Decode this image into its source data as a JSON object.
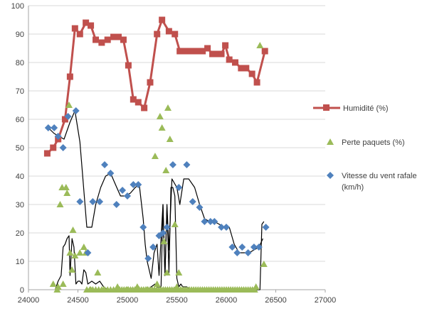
{
  "chart_data": {
    "type": "scatter",
    "title": "",
    "xlabel": "",
    "ylabel": "",
    "xlim": [
      24000,
      27000
    ],
    "ylim": [
      0,
      100
    ],
    "x_ticks": [
      24000,
      24500,
      25000,
      25500,
      26000,
      26500,
      27000
    ],
    "y_ticks": [
      0,
      10,
      20,
      30,
      40,
      50,
      60,
      70,
      80,
      90,
      100
    ],
    "grid": "horizontal",
    "legend_position": "right",
    "colors": {
      "humidity": "#C0504D",
      "packet_loss": "#9BBB59",
      "gust": "#4F81BD",
      "trend": "#000000",
      "grid": "#D9D9D9",
      "axis": "#A6A6A6"
    },
    "series": [
      {
        "name": "Humidité (%)",
        "style": "line-square",
        "points": [
          [
            24190,
            48
          ],
          [
            24250,
            50
          ],
          [
            24300,
            53
          ],
          [
            24370,
            60
          ],
          [
            24420,
            75
          ],
          [
            24470,
            92
          ],
          [
            24520,
            90
          ],
          [
            24580,
            94
          ],
          [
            24630,
            93
          ],
          [
            24680,
            88
          ],
          [
            24740,
            87
          ],
          [
            24800,
            88
          ],
          [
            24860,
            89
          ],
          [
            24910,
            89
          ],
          [
            24960,
            88
          ],
          [
            25010,
            79
          ],
          [
            25060,
            67
          ],
          [
            25110,
            66
          ],
          [
            25170,
            64
          ],
          [
            25230,
            73
          ],
          [
            25300,
            90
          ],
          [
            25350,
            95
          ],
          [
            25420,
            91
          ],
          [
            25480,
            90
          ],
          [
            25530,
            84
          ],
          [
            25590,
            84
          ],
          [
            25640,
            84
          ],
          [
            25700,
            84
          ],
          [
            25760,
            84
          ],
          [
            25810,
            85
          ],
          [
            25860,
            83
          ],
          [
            25900,
            83
          ],
          [
            25950,
            83
          ],
          [
            25990,
            86
          ],
          [
            26030,
            81
          ],
          [
            26090,
            80
          ],
          [
            26150,
            78
          ],
          [
            26200,
            78
          ],
          [
            26260,
            76
          ],
          [
            26310,
            73
          ],
          [
            26390,
            84
          ]
        ]
      },
      {
        "name": "Perte paquets (%)",
        "style": "triangle",
        "points": [
          [
            24250,
            2
          ],
          [
            24290,
            0
          ],
          [
            24300,
            1
          ],
          [
            24320,
            30
          ],
          [
            24340,
            36
          ],
          [
            24350,
            2
          ],
          [
            24380,
            36
          ],
          [
            24390,
            34
          ],
          [
            24410,
            65
          ],
          [
            24420,
            13
          ],
          [
            24440,
            7
          ],
          [
            24450,
            21
          ],
          [
            24470,
            12
          ],
          [
            24520,
            13
          ],
          [
            24560,
            15
          ],
          [
            24580,
            13
          ],
          [
            24590,
            0
          ],
          [
            24630,
            0
          ],
          [
            24700,
            6
          ],
          [
            24760,
            0
          ],
          [
            24900,
            1
          ],
          [
            25000,
            0
          ],
          [
            25100,
            1
          ],
          [
            25200,
            0
          ],
          [
            25280,
            47
          ],
          [
            25300,
            2
          ],
          [
            25330,
            61
          ],
          [
            25350,
            57
          ],
          [
            25370,
            17
          ],
          [
            25390,
            42
          ],
          [
            25400,
            6
          ],
          [
            25410,
            64
          ],
          [
            25430,
            53
          ],
          [
            25480,
            23
          ],
          [
            25500,
            1
          ],
          [
            25520,
            6
          ],
          [
            25540,
            0
          ],
          [
            26300,
            1
          ],
          [
            26340,
            86
          ],
          [
            26380,
            9
          ]
        ]
      },
      {
        "name": "Vitesse du vent rafale (km/h)",
        "style": "diamond",
        "points": [
          [
            24200,
            57
          ],
          [
            24260,
            57
          ],
          [
            24300,
            54
          ],
          [
            24350,
            50
          ],
          [
            24400,
            61
          ],
          [
            24480,
            63
          ],
          [
            24520,
            31
          ],
          [
            24600,
            13
          ],
          [
            24650,
            31
          ],
          [
            24720,
            31
          ],
          [
            24770,
            44
          ],
          [
            24830,
            41
          ],
          [
            24890,
            30
          ],
          [
            24950,
            35
          ],
          [
            25000,
            33
          ],
          [
            25060,
            37
          ],
          [
            25110,
            37
          ],
          [
            25160,
            22
          ],
          [
            25210,
            11
          ],
          [
            25260,
            15
          ],
          [
            25320,
            19
          ],
          [
            25360,
            20
          ],
          [
            25400,
            22
          ],
          [
            25460,
            44
          ],
          [
            25520,
            36
          ],
          [
            25600,
            44
          ],
          [
            25660,
            31
          ],
          [
            25730,
            29
          ],
          [
            25780,
            24
          ],
          [
            25840,
            24
          ],
          [
            25880,
            24
          ],
          [
            25950,
            22
          ],
          [
            26000,
            22
          ],
          [
            26060,
            15
          ],
          [
            26110,
            13
          ],
          [
            26160,
            15
          ],
          [
            26220,
            13
          ],
          [
            26280,
            15
          ],
          [
            26330,
            15
          ],
          [
            26400,
            22
          ]
        ]
      },
      {
        "name": "trend",
        "style": "line-black",
        "in_legend": false,
        "points": [
          [
            24200,
            57
          ],
          [
            24260,
            55
          ],
          [
            24310,
            54
          ],
          [
            24360,
            53
          ],
          [
            24420,
            59
          ],
          [
            24470,
            63
          ],
          [
            24520,
            52
          ],
          [
            24560,
            35
          ],
          [
            24590,
            22
          ],
          [
            24640,
            22
          ],
          [
            24680,
            30
          ],
          [
            24730,
            36
          ],
          [
            24780,
            40
          ],
          [
            24830,
            41
          ],
          [
            24880,
            37
          ],
          [
            24930,
            33
          ],
          [
            24980,
            33
          ],
          [
            25030,
            34
          ],
          [
            25080,
            36
          ],
          [
            25120,
            37
          ],
          [
            25160,
            25
          ],
          [
            25180,
            16
          ],
          [
            25200,
            10
          ],
          [
            25240,
            4
          ],
          [
            25270,
            13
          ],
          [
            25300,
            16
          ],
          [
            25320,
            5
          ],
          [
            25340,
            18
          ],
          [
            25360,
            30
          ],
          [
            25380,
            5
          ],
          [
            25400,
            30
          ],
          [
            25420,
            14
          ],
          [
            25450,
            39
          ],
          [
            25500,
            36
          ],
          [
            25530,
            30
          ],
          [
            25570,
            39
          ],
          [
            25620,
            39
          ],
          [
            25680,
            36
          ],
          [
            25730,
            30
          ],
          [
            25780,
            25
          ],
          [
            25830,
            24
          ],
          [
            25880,
            24
          ],
          [
            25930,
            23
          ],
          [
            25980,
            22
          ],
          [
            26030,
            22
          ],
          [
            26080,
            16
          ],
          [
            26130,
            13
          ],
          [
            26180,
            13
          ],
          [
            26230,
            13
          ],
          [
            26280,
            14
          ],
          [
            26330,
            15
          ],
          [
            26370,
            18
          ]
        ]
      },
      {
        "name": "trend-low",
        "style": "line-black",
        "in_legend": false,
        "points": [
          [
            24270,
            0
          ],
          [
            24300,
            3
          ],
          [
            24330,
            5
          ],
          [
            24350,
            15
          ],
          [
            24370,
            16
          ],
          [
            24390,
            18
          ],
          [
            24410,
            19
          ],
          [
            24420,
            5
          ],
          [
            24440,
            18
          ],
          [
            24460,
            15
          ],
          [
            24480,
            2
          ],
          [
            24500,
            3
          ],
          [
            24520,
            3
          ],
          [
            24540,
            2
          ],
          [
            24560,
            7
          ],
          [
            24580,
            6
          ],
          [
            24600,
            2
          ],
          [
            24640,
            3
          ],
          [
            24680,
            2
          ],
          [
            24720,
            3
          ],
          [
            24760,
            1
          ],
          [
            24800,
            0
          ],
          [
            25200,
            0
          ],
          [
            25240,
            1
          ],
          [
            25280,
            2
          ],
          [
            25300,
            1
          ],
          [
            25340,
            1
          ],
          [
            25360,
            30
          ],
          [
            25380,
            5
          ],
          [
            25400,
            29
          ],
          [
            25420,
            6
          ],
          [
            25440,
            36
          ],
          [
            25460,
            36
          ],
          [
            25480,
            33
          ],
          [
            25500,
            4
          ],
          [
            25520,
            1
          ],
          [
            25540,
            2
          ],
          [
            25560,
            1
          ],
          [
            25600,
            1
          ],
          [
            25640,
            0
          ],
          [
            26340,
            0
          ],
          [
            26360,
            23
          ],
          [
            26380,
            24
          ]
        ]
      }
    ],
    "legend": [
      {
        "label": "Humidité (%)",
        "marker": "square",
        "line": true,
        "color": "#C0504D"
      },
      {
        "label": "Perte paquets (%)",
        "marker": "triangle",
        "line": false,
        "color": "#9BBB59"
      },
      {
        "label_line1": "Vitesse du vent rafale",
        "label_line2": "(km/h)",
        "marker": "diamond",
        "line": false,
        "color": "#4F81BD"
      }
    ]
  }
}
